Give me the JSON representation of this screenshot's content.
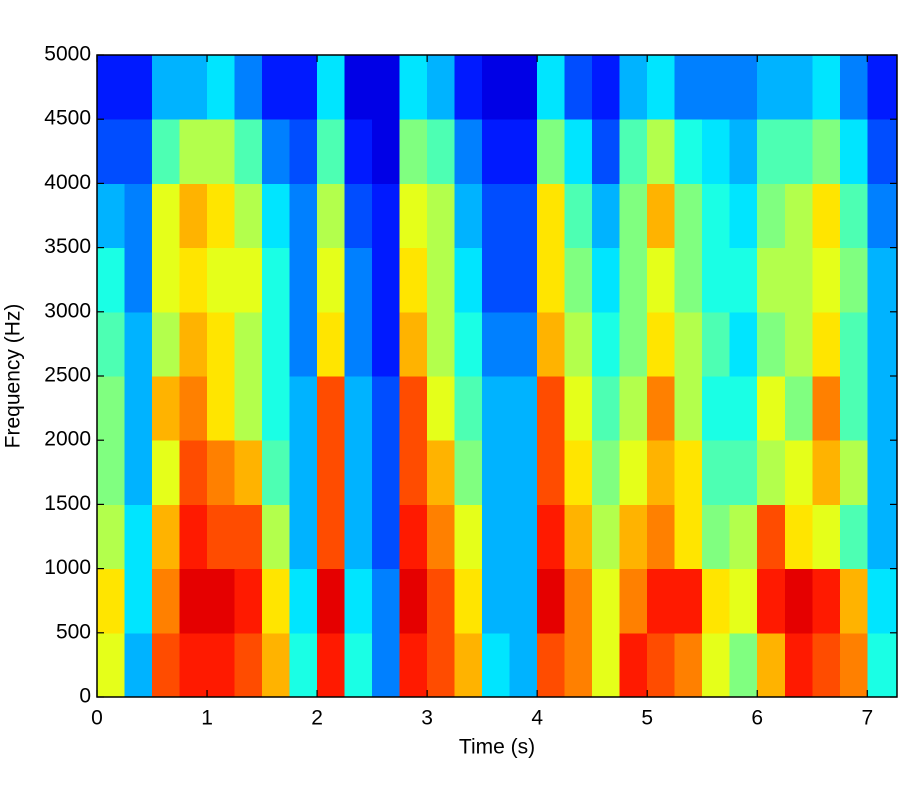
{
  "chart_data": {
    "type": "spectrogram",
    "xlabel": "Time (s)",
    "ylabel": "Frequency (Hz)",
    "colormap": "jet",
    "xlim": [
      0,
      7.27
    ],
    "ylim": [
      0,
      5000
    ],
    "xticks": [
      0,
      1,
      2,
      3,
      4,
      5,
      6,
      7
    ],
    "yticks": [
      0,
      500,
      1000,
      1500,
      2000,
      2500,
      3000,
      3500,
      4000,
      4500,
      5000
    ],
    "xbins": [
      0,
      0.25,
      0.5,
      0.75,
      1,
      1.25,
      1.5,
      1.75,
      2,
      2.25,
      2.5,
      2.75,
      3,
      3.25,
      3.5,
      3.75,
      4,
      4.25,
      4.5,
      4.75,
      5,
      5.25,
      5.5,
      5.75,
      6,
      6.25,
      6.5,
      6.75,
      7,
      7.27
    ],
    "ybins": [
      0,
      500,
      1000,
      1500,
      2000,
      2500,
      3000,
      3500,
      4000,
      4500,
      5000
    ],
    "z": [
      [
        0.6,
        0.3,
        0.8,
        0.85,
        0.85,
        0.8,
        0.7,
        0.4,
        0.85,
        0.4,
        0.25,
        0.85,
        0.8,
        0.7,
        0.35,
        0.3,
        0.8,
        0.75,
        0.6,
        0.85,
        0.8,
        0.75,
        0.6,
        0.5,
        0.7,
        0.85,
        0.8,
        0.75,
        0.4
      ],
      [
        0.65,
        0.35,
        0.75,
        0.9,
        0.9,
        0.85,
        0.65,
        0.35,
        0.9,
        0.35,
        0.25,
        0.9,
        0.8,
        0.65,
        0.3,
        0.3,
        0.9,
        0.75,
        0.6,
        0.75,
        0.85,
        0.85,
        0.65,
        0.6,
        0.85,
        0.9,
        0.85,
        0.7,
        0.35
      ],
      [
        0.55,
        0.35,
        0.7,
        0.85,
        0.8,
        0.8,
        0.55,
        0.3,
        0.8,
        0.3,
        0.2,
        0.85,
        0.75,
        0.6,
        0.3,
        0.3,
        0.85,
        0.7,
        0.55,
        0.7,
        0.75,
        0.65,
        0.5,
        0.55,
        0.8,
        0.65,
        0.6,
        0.45,
        0.3
      ],
      [
        0.5,
        0.3,
        0.6,
        0.8,
        0.75,
        0.7,
        0.45,
        0.3,
        0.8,
        0.3,
        0.2,
        0.8,
        0.7,
        0.5,
        0.3,
        0.3,
        0.8,
        0.65,
        0.5,
        0.6,
        0.7,
        0.65,
        0.45,
        0.45,
        0.55,
        0.6,
        0.7,
        0.55,
        0.3
      ],
      [
        0.5,
        0.3,
        0.7,
        0.75,
        0.65,
        0.55,
        0.4,
        0.3,
        0.8,
        0.3,
        0.2,
        0.8,
        0.6,
        0.45,
        0.3,
        0.3,
        0.8,
        0.6,
        0.45,
        0.55,
        0.75,
        0.55,
        0.4,
        0.4,
        0.6,
        0.5,
        0.75,
        0.45,
        0.3
      ],
      [
        0.45,
        0.3,
        0.55,
        0.7,
        0.65,
        0.55,
        0.4,
        0.25,
        0.65,
        0.25,
        0.15,
        0.7,
        0.55,
        0.4,
        0.25,
        0.25,
        0.7,
        0.55,
        0.4,
        0.5,
        0.65,
        0.55,
        0.45,
        0.35,
        0.5,
        0.55,
        0.65,
        0.45,
        0.3
      ],
      [
        0.4,
        0.25,
        0.6,
        0.65,
        0.6,
        0.6,
        0.4,
        0.25,
        0.6,
        0.25,
        0.15,
        0.65,
        0.55,
        0.35,
        0.2,
        0.2,
        0.65,
        0.5,
        0.35,
        0.5,
        0.6,
        0.5,
        0.4,
        0.4,
        0.55,
        0.55,
        0.6,
        0.5,
        0.3
      ],
      [
        0.3,
        0.25,
        0.6,
        0.7,
        0.65,
        0.55,
        0.35,
        0.25,
        0.55,
        0.2,
        0.15,
        0.6,
        0.55,
        0.3,
        0.2,
        0.2,
        0.65,
        0.45,
        0.3,
        0.5,
        0.7,
        0.5,
        0.4,
        0.35,
        0.5,
        0.55,
        0.65,
        0.45,
        0.25
      ],
      [
        0.2,
        0.2,
        0.45,
        0.55,
        0.55,
        0.45,
        0.25,
        0.2,
        0.45,
        0.15,
        0.1,
        0.5,
        0.45,
        0.25,
        0.15,
        0.15,
        0.5,
        0.35,
        0.2,
        0.45,
        0.55,
        0.4,
        0.35,
        0.3,
        0.45,
        0.45,
        0.5,
        0.35,
        0.2
      ],
      [
        0.15,
        0.15,
        0.3,
        0.3,
        0.35,
        0.25,
        0.15,
        0.15,
        0.35,
        0.1,
        0.1,
        0.35,
        0.3,
        0.15,
        0.1,
        0.1,
        0.35,
        0.2,
        0.15,
        0.3,
        0.35,
        0.25,
        0.25,
        0.25,
        0.3,
        0.3,
        0.35,
        0.25,
        0.15
      ]
    ]
  }
}
